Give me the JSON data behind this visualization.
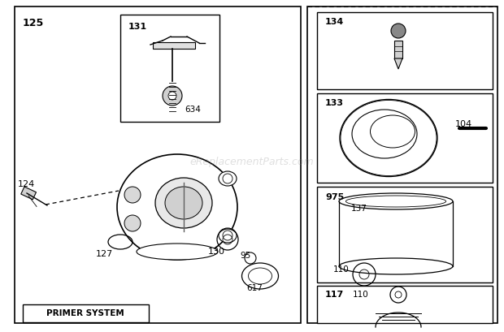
{
  "bg_color": "#ffffff",
  "watermark": "eReplacementParts.com",
  "fig_w": 6.2,
  "fig_h": 4.09,
  "dpi": 100
}
